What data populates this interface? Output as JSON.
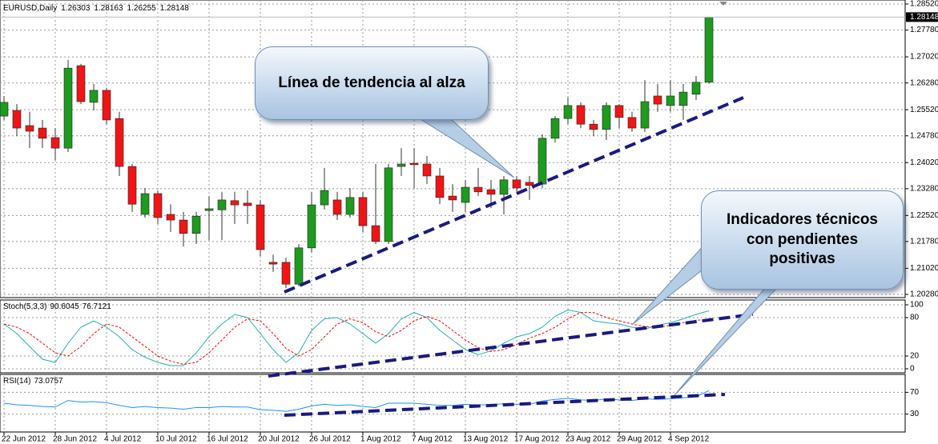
{
  "chart_data": {
    "type": "candlestick",
    "title": "EURUSD,Daily",
    "categories": [
      "22 Jun 2012",
      null,
      null,
      null,
      "28 Jun 2012",
      null,
      null,
      null,
      "4 Jul 2012",
      null,
      null,
      null,
      "10 Jul 2012",
      null,
      null,
      null,
      "16 Jul 2012",
      null,
      null,
      null,
      "20 Jul 2012",
      null,
      null,
      null,
      "26 Jul 2012",
      null,
      null,
      null,
      "1 Aug 2012",
      null,
      null,
      null,
      "7 Aug 2012",
      null,
      null,
      null,
      "13 Aug 2012",
      null,
      null,
      null,
      "17 Aug 2012",
      null,
      null,
      null,
      "23 Aug 2012",
      null,
      null,
      null,
      "29 Aug 2012",
      null,
      null,
      null,
      "4 Sep 2012",
      null,
      null,
      null
    ],
    "open": [
      1.2534,
      1.255,
      1.2507,
      1.25,
      1.2473,
      1.2443,
      1.2677,
      1.2573,
      1.2607,
      1.2527,
      1.2391,
      1.2255,
      1.2314,
      1.2255,
      1.2239,
      1.2201,
      1.2266,
      1.2268,
      1.2294,
      1.2287,
      1.2282,
      1.2119,
      1.2119,
      1.2057,
      1.216,
      1.2282,
      1.2296,
      1.2255,
      1.2303,
      1.2223,
      1.2178,
      1.2391,
      1.24,
      1.2398,
      1.2364,
      1.2307,
      1.2289,
      1.2332,
      1.2325,
      1.2312,
      1.2353,
      1.2346,
      1.2341,
      1.2471,
      1.2527,
      1.2564,
      1.2511,
      1.2496,
      1.2564,
      1.253,
      1.25,
      1.2591,
      1.2564,
      1.2564,
      1.2596,
      1.26303
    ],
    "high": [
      1.2591,
      1.2568,
      1.2546,
      1.2523,
      1.25,
      1.2693,
      1.2682,
      1.2625,
      1.2614,
      1.2546,
      1.2398,
      1.233,
      1.2323,
      1.2284,
      1.2262,
      1.2262,
      1.2307,
      1.2319,
      1.2319,
      1.2323,
      1.2296,
      1.2141,
      1.2132,
      1.2171,
      1.2319,
      1.2387,
      1.2319,
      1.233,
      1.2319,
      1.2398,
      1.2398,
      1.2443,
      1.2443,
      1.2421,
      1.2387,
      1.2341,
      1.2353,
      1.2387,
      1.2353,
      1.2364,
      1.2364,
      1.2364,
      1.2482,
      1.2534,
      1.2586,
      1.2573,
      1.2523,
      1.2573,
      1.2568,
      1.2546,
      1.2636,
      1.2625,
      1.2636,
      1.2625,
      1.2648,
      1.28163
    ],
    "low": [
      1.2523,
      1.2477,
      1.2443,
      1.2443,
      1.2409,
      1.2432,
      1.2568,
      1.255,
      1.2511,
      1.2364,
      1.2262,
      1.2246,
      1.2228,
      1.2205,
      1.2164,
      1.2171,
      1.2182,
      1.2182,
      1.2228,
      1.2228,
      1.2137,
      1.2092,
      1.2046,
      1.2051,
      1.2148,
      1.2269,
      1.2239,
      1.2246,
      1.2205,
      1.2171,
      1.2171,
      1.2364,
      1.233,
      1.2341,
      1.2284,
      1.2262,
      1.2262,
      1.2307,
      1.2273,
      1.2255,
      1.2319,
      1.2296,
      1.233,
      1.2459,
      1.2511,
      1.25,
      1.2477,
      1.2466,
      1.25,
      1.2489,
      1.2489,
      1.2546,
      1.2546,
      1.2523,
      1.258,
      1.26255
    ],
    "close": [
      1.2573,
      1.25,
      1.2491,
      1.2471,
      1.2443,
      1.267,
      1.2575,
      1.2607,
      1.2523,
      1.2391,
      1.2284,
      1.2314,
      1.2246,
      1.2239,
      1.2201,
      1.225,
      1.2271,
      1.2296,
      1.2282,
      1.228,
      1.2155,
      1.2114,
      1.2057,
      1.216,
      1.2282,
      1.2323,
      1.2255,
      1.2303,
      1.2223,
      1.2178,
      1.2387,
      1.2398,
      1.2396,
      1.2364,
      1.2303,
      1.2296,
      1.2332,
      1.2319,
      1.2312,
      1.2353,
      1.233,
      1.2337,
      1.2471,
      1.2527,
      1.2564,
      1.2511,
      1.2496,
      1.2564,
      1.253,
      1.25,
      1.2575,
      1.2568,
      1.2591,
      1.2602,
      1.263,
      1.28148
    ],
    "up_color": "#1e9a1e",
    "down_color": "#f01414",
    "ylim": [
      1.2028,
      1.2852
    ],
    "yticks": [
      {
        "value": 1.2852,
        "label": "1.28520"
      },
      {
        "value": 1.2778,
        "label": "1.27780"
      },
      {
        "value": 1.2702,
        "label": "1.27020"
      },
      {
        "value": 1.2628,
        "label": "1.26280"
      },
      {
        "value": 1.2552,
        "label": "1.25520"
      },
      {
        "value": 1.2478,
        "label": "1.24780"
      },
      {
        "value": 1.2402,
        "label": "1.24020"
      },
      {
        "value": 1.2328,
        "label": "1.23280"
      },
      {
        "value": 1.2252,
        "label": "1.22520"
      },
      {
        "value": 1.2178,
        "label": "1.21780"
      },
      {
        "value": 1.2102,
        "label": "1.21020"
      },
      {
        "value": 1.2028,
        "label": "1.20280"
      }
    ],
    "grid": true,
    "indicators": [
      {
        "type": "line",
        "title": "Stoch(5,3,3)",
        "ylim": [
          0,
          100
        ],
        "yticks": [
          0,
          20,
          80,
          100
        ],
        "series": [
          {
            "color": "#20b2aa",
            "values": [
              70,
              55,
              35,
              15,
              10,
              40,
              65,
              75,
              65,
              50,
              30,
              18,
              10,
              5,
              5,
              25,
              50,
              70,
              85,
              80,
              55,
              30,
              10,
              25,
              60,
              78,
              80,
              70,
              55,
              40,
              55,
              78,
              88,
              80,
              60,
              45,
              30,
              22,
              28,
              40,
              50,
              55,
              65,
              82,
              92,
              88,
              75,
              72,
              70,
              65,
              62,
              68,
              72,
              78,
              85,
              90.6045
            ]
          },
          {
            "color": "#ff0000",
            "dashed": true,
            "values": [
              70,
              65,
              55,
              40,
              25,
              20,
              35,
              55,
              70,
              65,
              50,
              35,
              20,
              12,
              7,
              10,
              25,
              45,
              65,
              78,
              75,
              55,
              32,
              20,
              30,
              50,
              70,
              78,
              72,
              58,
              50,
              60,
              75,
              82,
              75,
              60,
              45,
              33,
              27,
              30,
              38,
              48,
              55,
              65,
              78,
              88,
              88,
              80,
              75,
              70,
              66,
              65,
              68,
              72,
              76,
              76.7121
            ]
          }
        ]
      },
      {
        "type": "line",
        "title": "RSI(14)",
        "ylim": [
          0,
          100
        ],
        "yticks": [
          30,
          70
        ],
        "series": [
          {
            "color": "#1e90ff",
            "values": [
              50,
              47,
              46,
              44,
              43,
              55,
              52,
              53,
              51,
              46,
              42,
              44,
              42,
              41,
              39,
              42,
              42,
              44,
              43,
              43,
              38,
              37,
              35,
              39,
              45,
              48,
              46,
              47,
              44,
              42,
              50,
              50,
              50,
              48,
              46,
              46,
              48,
              47,
              47,
              49,
              48,
              48,
              54,
              57,
              59,
              56,
              55,
              58,
              56,
              55,
              58,
              57,
              58,
              60,
              62,
              73.0757
            ]
          }
        ]
      }
    ],
    "annotations": [
      "Línea de tendencia al alza",
      "Indicadores técnicos con pendientes positivas"
    ]
  }
}
